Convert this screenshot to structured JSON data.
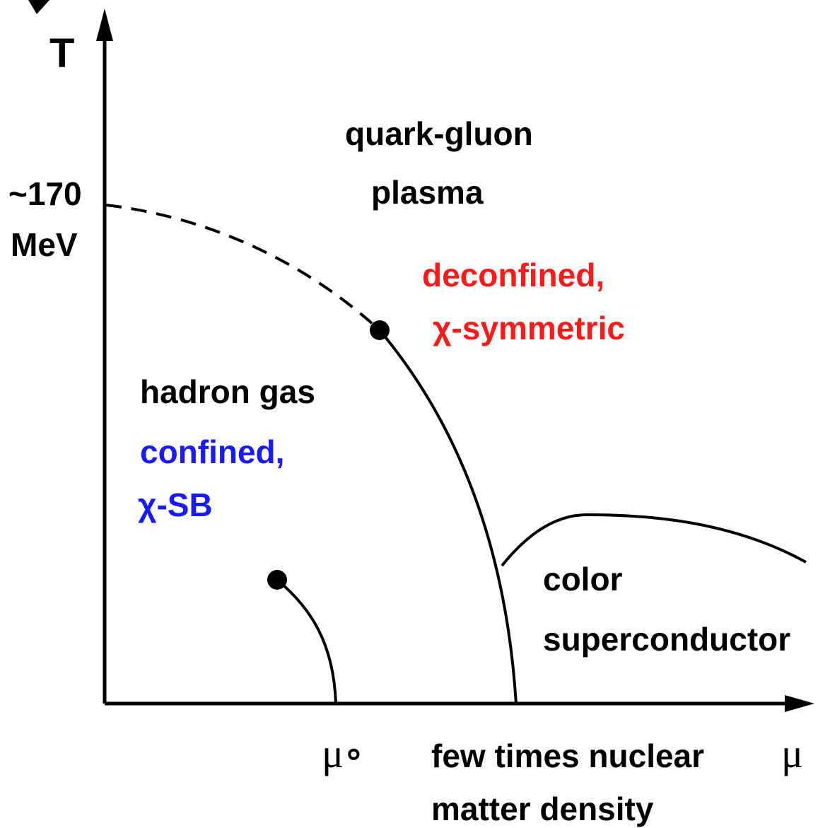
{
  "axes": {
    "y_label": "T",
    "x_label": "μ",
    "y_mark": [
      "~170",
      "MeV"
    ],
    "x_mark_mu": "μ∘",
    "x_mark_text": [
      "few times nuclear",
      "matter density"
    ]
  },
  "regions": {
    "qgp": [
      "quark-gluon",
      "plasma"
    ],
    "qgp_props": [
      "deconfined,",
      "χ-symmetric"
    ],
    "hadron": "hadron gas",
    "hadron_props": [
      "confined,",
      "χ-SB"
    ],
    "csc": [
      "color",
      "superconductor"
    ]
  }
}
